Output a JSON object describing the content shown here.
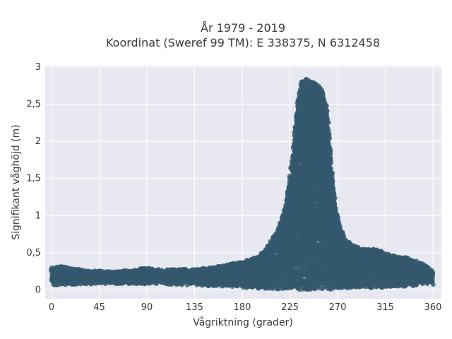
{
  "chart_data": {
    "type": "scatter",
    "title_lines": [
      "År 1979 - 2019",
      "Koordinat (Sweref 99 TM): E 338375, N 6312458"
    ],
    "xlabel": "Vågriktning (grader)",
    "ylabel": "Signifikant våghöjd (m)",
    "xlim": [
      -6,
      368
    ],
    "ylim": [
      -0.12,
      3.02
    ],
    "x_ticks": [
      0,
      45,
      90,
      135,
      180,
      225,
      270,
      315,
      360
    ],
    "y_ticks": [
      0,
      0.5,
      1,
      1.5,
      2,
      2.5,
      3
    ],
    "y_tick_labels": [
      "0",
      "0,5",
      "1",
      "1,5",
      "2",
      "2,5",
      "3"
    ],
    "grid": true,
    "marker_color": "#34586e",
    "background_color": "#e8e8f0",
    "series": [
      {
        "upper_envelope": {
          "x": [
            0,
            10,
            20,
            30,
            45,
            60,
            75,
            90,
            105,
            120,
            135,
            150,
            165,
            180,
            195,
            205,
            215,
            222,
            228,
            232,
            236,
            240,
            245,
            250,
            255,
            260,
            264,
            268,
            272,
            278,
            285,
            295,
            305,
            315,
            325,
            335,
            345,
            355,
            360
          ],
          "y": [
            0.3,
            0.32,
            0.29,
            0.27,
            0.26,
            0.25,
            0.27,
            0.3,
            0.27,
            0.28,
            0.28,
            0.3,
            0.34,
            0.38,
            0.45,
            0.6,
            0.85,
            1.2,
            1.9,
            2.5,
            2.82,
            2.86,
            2.82,
            2.78,
            2.7,
            2.45,
            1.7,
            1.15,
            0.85,
            0.68,
            0.6,
            0.55,
            0.55,
            0.5,
            0.45,
            0.44,
            0.4,
            0.32,
            0.25
          ]
        },
        "lower_envelope": {
          "x": [
            0,
            45,
            90,
            135,
            170,
            190,
            210,
            225,
            240,
            255,
            270,
            290,
            315,
            340,
            360
          ],
          "y": [
            0.06,
            0.08,
            0.08,
            0.06,
            0.04,
            0.02,
            0.01,
            0.0,
            0.0,
            0.0,
            0.01,
            0.02,
            0.03,
            0.05,
            0.07
          ]
        }
      }
    ]
  }
}
